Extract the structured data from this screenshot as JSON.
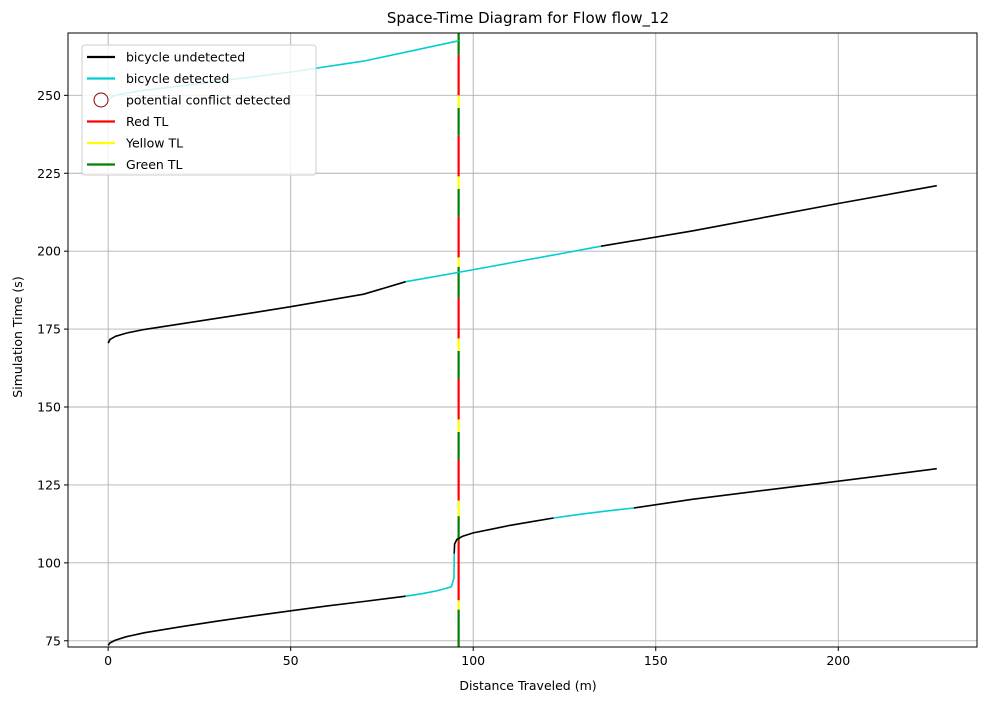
{
  "chart_data": {
    "type": "line",
    "title": "Space-Time Diagram for Flow flow_12",
    "xlabel": "Distance Traveled (m)",
    "ylabel": "Simulation Time (s)",
    "xlim": [
      -11,
      238
    ],
    "ylim": [
      73,
      270
    ],
    "xticks": [
      0,
      50,
      100,
      150,
      200
    ],
    "yticks": [
      75,
      100,
      125,
      150,
      175,
      200,
      225,
      250
    ],
    "grid": true,
    "legend_position": "top-left",
    "colors": {
      "undetected": "#000000",
      "detected": "#00ced1",
      "conflict": "#8b0000",
      "red": "#ff0000",
      "yellow": "#ffff00",
      "green": "#008000",
      "grid": "#b0b0b0"
    },
    "legend": [
      {
        "label": "bicycle undetected",
        "kind": "line",
        "color": "#000000"
      },
      {
        "label": "bicycle detected",
        "kind": "line",
        "color": "#00ced1"
      },
      {
        "label": "potential conflict detected",
        "kind": "circle",
        "color": "#8b0000"
      },
      {
        "label": "Red TL",
        "kind": "line",
        "color": "#ff0000"
      },
      {
        "label": "Yellow TL",
        "kind": "line",
        "color": "#ffff00"
      },
      {
        "label": "Green TL",
        "kind": "line",
        "color": "#008000"
      }
    ],
    "traffic_light": {
      "x": 96,
      "segments": [
        {
          "state": "green",
          "y0": 73,
          "y1": 85
        },
        {
          "state": "yellow",
          "y0": 85,
          "y1": 88
        },
        {
          "state": "red",
          "y0": 88,
          "y1": 107
        },
        {
          "state": "green",
          "y0": 107,
          "y1": 115
        },
        {
          "state": "yellow",
          "y0": 115,
          "y1": 120
        },
        {
          "state": "red",
          "y0": 120,
          "y1": 133
        },
        {
          "state": "green",
          "y0": 133,
          "y1": 142
        },
        {
          "state": "yellow",
          "y0": 142,
          "y1": 146
        },
        {
          "state": "red",
          "y0": 146,
          "y1": 159
        },
        {
          "state": "green",
          "y0": 159,
          "y1": 168
        },
        {
          "state": "yellow",
          "y0": 168,
          "y1": 172
        },
        {
          "state": "red",
          "y0": 172,
          "y1": 185
        },
        {
          "state": "green",
          "y0": 185,
          "y1": 195
        },
        {
          "state": "yellow",
          "y0": 195,
          "y1": 198
        },
        {
          "state": "red",
          "y0": 198,
          "y1": 211
        },
        {
          "state": "green",
          "y0": 211,
          "y1": 220
        },
        {
          "state": "yellow",
          "y0": 220,
          "y1": 224
        },
        {
          "state": "red",
          "y0": 224,
          "y1": 237
        },
        {
          "state": "green",
          "y0": 237,
          "y1": 246
        },
        {
          "state": "yellow",
          "y0": 246,
          "y1": 250
        },
        {
          "state": "red",
          "y0": 250,
          "y1": 263
        },
        {
          "state": "green",
          "y0": 263,
          "y1": 270
        }
      ]
    },
    "series": [
      {
        "status": "undetected",
        "points": [
          [
            0,
            73.5
          ],
          [
            0.5,
            74.3
          ],
          [
            2,
            75.2
          ],
          [
            5,
            76.3
          ],
          [
            10,
            77.6
          ],
          [
            20,
            79.5
          ],
          [
            30,
            81.3
          ],
          [
            40,
            83
          ],
          [
            50,
            84.6
          ],
          [
            60,
            86.2
          ],
          [
            70,
            87.6
          ],
          [
            81.5,
            89.3
          ]
        ]
      },
      {
        "status": "detected",
        "points": [
          [
            81.5,
            89.3
          ],
          [
            86,
            90.1
          ],
          [
            90,
            91
          ],
          [
            92.5,
            91.8
          ],
          [
            94,
            92.3
          ],
          [
            94.7,
            95
          ],
          [
            94.8,
            100
          ],
          [
            94.8,
            103
          ]
        ]
      },
      {
        "status": "undetected",
        "points": [
          [
            94.8,
            103
          ],
          [
            94.9,
            106
          ],
          [
            95.5,
            107.5
          ],
          [
            97,
            108.5
          ],
          [
            100,
            109.6
          ],
          [
            105,
            110.8
          ],
          [
            110,
            112
          ],
          [
            116,
            113.2
          ],
          [
            122,
            114.4
          ]
        ]
      },
      {
        "status": "detected",
        "points": [
          [
            122,
            114.4
          ],
          [
            130,
            115.7
          ],
          [
            137,
            116.7
          ],
          [
            144,
            117.6
          ]
        ]
      },
      {
        "status": "undetected",
        "points": [
          [
            144,
            117.6
          ],
          [
            160,
            120.4
          ],
          [
            180,
            123.3
          ],
          [
            200,
            126.2
          ],
          [
            227,
            130.2
          ]
        ]
      },
      {
        "status": "undetected",
        "points": [
          [
            0,
            170.5
          ],
          [
            0.5,
            171.7
          ],
          [
            2,
            172.7
          ],
          [
            5,
            173.7
          ],
          [
            10,
            174.9
          ],
          [
            20,
            176.7
          ],
          [
            30,
            178.5
          ],
          [
            40,
            180.3
          ],
          [
            50,
            182.2
          ],
          [
            60,
            184.2
          ],
          [
            70,
            186.2
          ],
          [
            81.5,
            190.2
          ]
        ]
      },
      {
        "status": "detected",
        "points": [
          [
            81.5,
            190.2
          ],
          [
            95,
            193
          ],
          [
            110,
            196.2
          ],
          [
            125,
            199.4
          ],
          [
            135,
            201.6
          ]
        ]
      },
      {
        "status": "undetected",
        "points": [
          [
            135,
            201.6
          ],
          [
            160,
            206.5
          ],
          [
            180,
            210.9
          ],
          [
            200,
            215.3
          ],
          [
            227,
            221
          ]
        ]
      },
      {
        "status": "detected",
        "points": [
          [
            0,
            248.5
          ],
          [
            1,
            249.5
          ],
          [
            3,
            250.3
          ],
          [
            10,
            251.6
          ],
          [
            30,
            254.5
          ],
          [
            50,
            257.5
          ],
          [
            70,
            261
          ],
          [
            96,
            267.5
          ]
        ]
      }
    ]
  }
}
